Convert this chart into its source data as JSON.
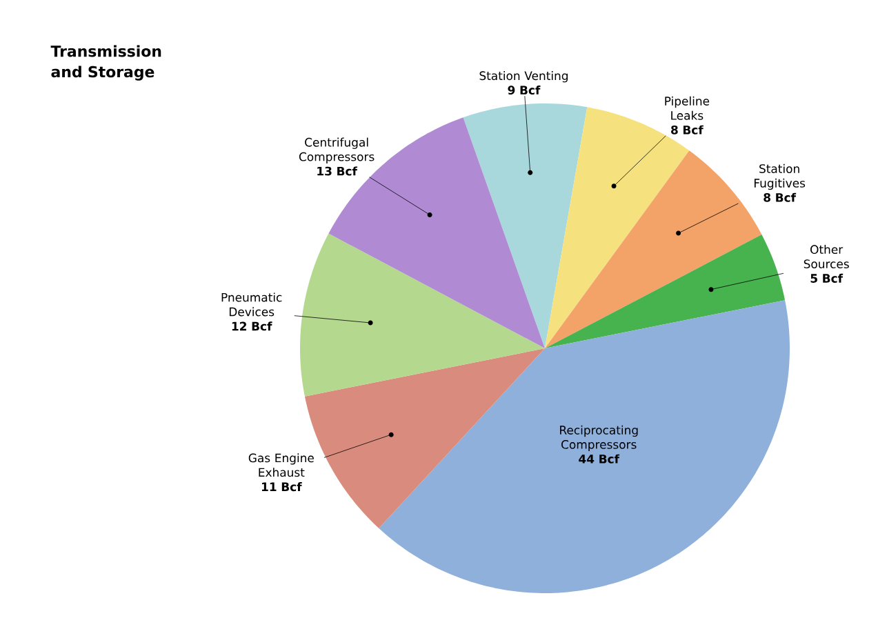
{
  "chart_data": {
    "type": "pie",
    "title": "Transmission and Storage",
    "categories": [
      "Station Venting",
      "Pipeline Leaks",
      "Station Fugitives",
      "Other Sources",
      "Reciprocating Compressors",
      "Gas Engine Exhaust",
      "Pneumatic Devices",
      "Centrifugal Compressors"
    ],
    "values": [
      9,
      8,
      8,
      5,
      44,
      11,
      12,
      13
    ],
    "value_labels": [
      "9 Bcf",
      "8 Bcf",
      "8 Bcf",
      "5 Bcf",
      "44 Bcf",
      "11 Bcf",
      "12 Bcf",
      "13 Bcf"
    ],
    "colors": [
      "#a9d8dc",
      "#f5e27e",
      "#f3a268",
      "#47b34f",
      "#8fb0db",
      "#d98c7e",
      "#b5d88f",
      "#b08bd3"
    ]
  }
}
